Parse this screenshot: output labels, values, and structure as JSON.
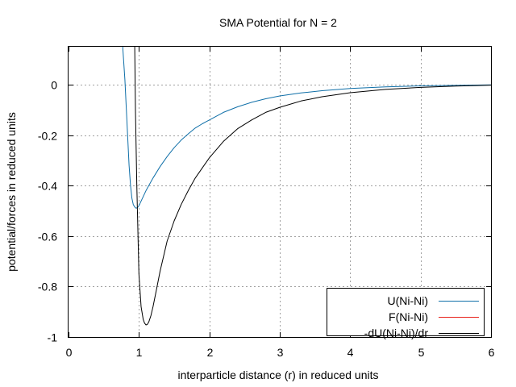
{
  "chart_data": {
    "type": "line",
    "title": "SMA Potential for N = 2",
    "xlabel": "interparticle distance (r) in reduced units",
    "ylabel": "potential/forces in reduced units",
    "xlim": [
      0,
      6
    ],
    "ylim": [
      -1,
      0.15
    ],
    "x_ticks": [
      "0",
      "1",
      "2",
      "3",
      "4",
      "5",
      "6"
    ],
    "y_ticks": [
      "0",
      "-0.2",
      "-0.4",
      "-0.6",
      "-0.8",
      "-1"
    ],
    "grid": true,
    "legend_position": "bottom-right",
    "series": [
      {
        "name": "U(Ni-Ni)",
        "color": "#0f6fa8",
        "x": [
          0.77,
          0.8,
          0.83,
          0.86,
          0.88,
          0.9,
          0.92,
          0.94,
          0.96,
          0.98,
          1.0,
          1.05,
          1.1,
          1.2,
          1.3,
          1.4,
          1.5,
          1.6,
          1.7,
          1.8,
          1.9,
          2.0,
          2.2,
          2.4,
          2.6,
          2.8,
          3.0,
          3.3,
          3.6,
          4.0,
          4.5,
          5.0,
          5.5,
          6.0
        ],
        "y": [
          0.15,
          0.02,
          -0.15,
          -0.32,
          -0.4,
          -0.45,
          -0.475,
          -0.485,
          -0.49,
          -0.487,
          -0.48,
          -0.45,
          -0.42,
          -0.37,
          -0.325,
          -0.285,
          -0.25,
          -0.22,
          -0.195,
          -0.172,
          -0.155,
          -0.14,
          -0.11,
          -0.088,
          -0.07,
          -0.056,
          -0.045,
          -0.033,
          -0.024,
          -0.015,
          -0.009,
          -0.005,
          -0.003,
          -0.001
        ]
      },
      {
        "name": "F(Ni-Ni)",
        "color": "#e8221a",
        "x": [],
        "y": []
      },
      {
        "name": "-dU(Ni-Ni)/dr",
        "color": "#000000",
        "x": [
          0.94,
          0.95,
          0.97,
          1.0,
          1.03,
          1.06,
          1.08,
          1.1,
          1.12,
          1.14,
          1.17,
          1.2,
          1.25,
          1.3,
          1.4,
          1.5,
          1.6,
          1.7,
          1.8,
          1.9,
          2.0,
          2.2,
          2.4,
          2.6,
          2.8,
          3.0,
          3.3,
          3.6,
          4.0,
          4.5,
          5.0,
          5.5,
          6.0
        ],
        "y": [
          0.15,
          -0.1,
          -0.4,
          -0.75,
          -0.88,
          -0.93,
          -0.945,
          -0.952,
          -0.95,
          -0.94,
          -0.915,
          -0.88,
          -0.81,
          -0.74,
          -0.62,
          -0.54,
          -0.475,
          -0.42,
          -0.37,
          -0.33,
          -0.29,
          -0.225,
          -0.175,
          -0.14,
          -0.11,
          -0.09,
          -0.065,
          -0.048,
          -0.032,
          -0.019,
          -0.011,
          -0.006,
          -0.002
        ]
      }
    ]
  }
}
